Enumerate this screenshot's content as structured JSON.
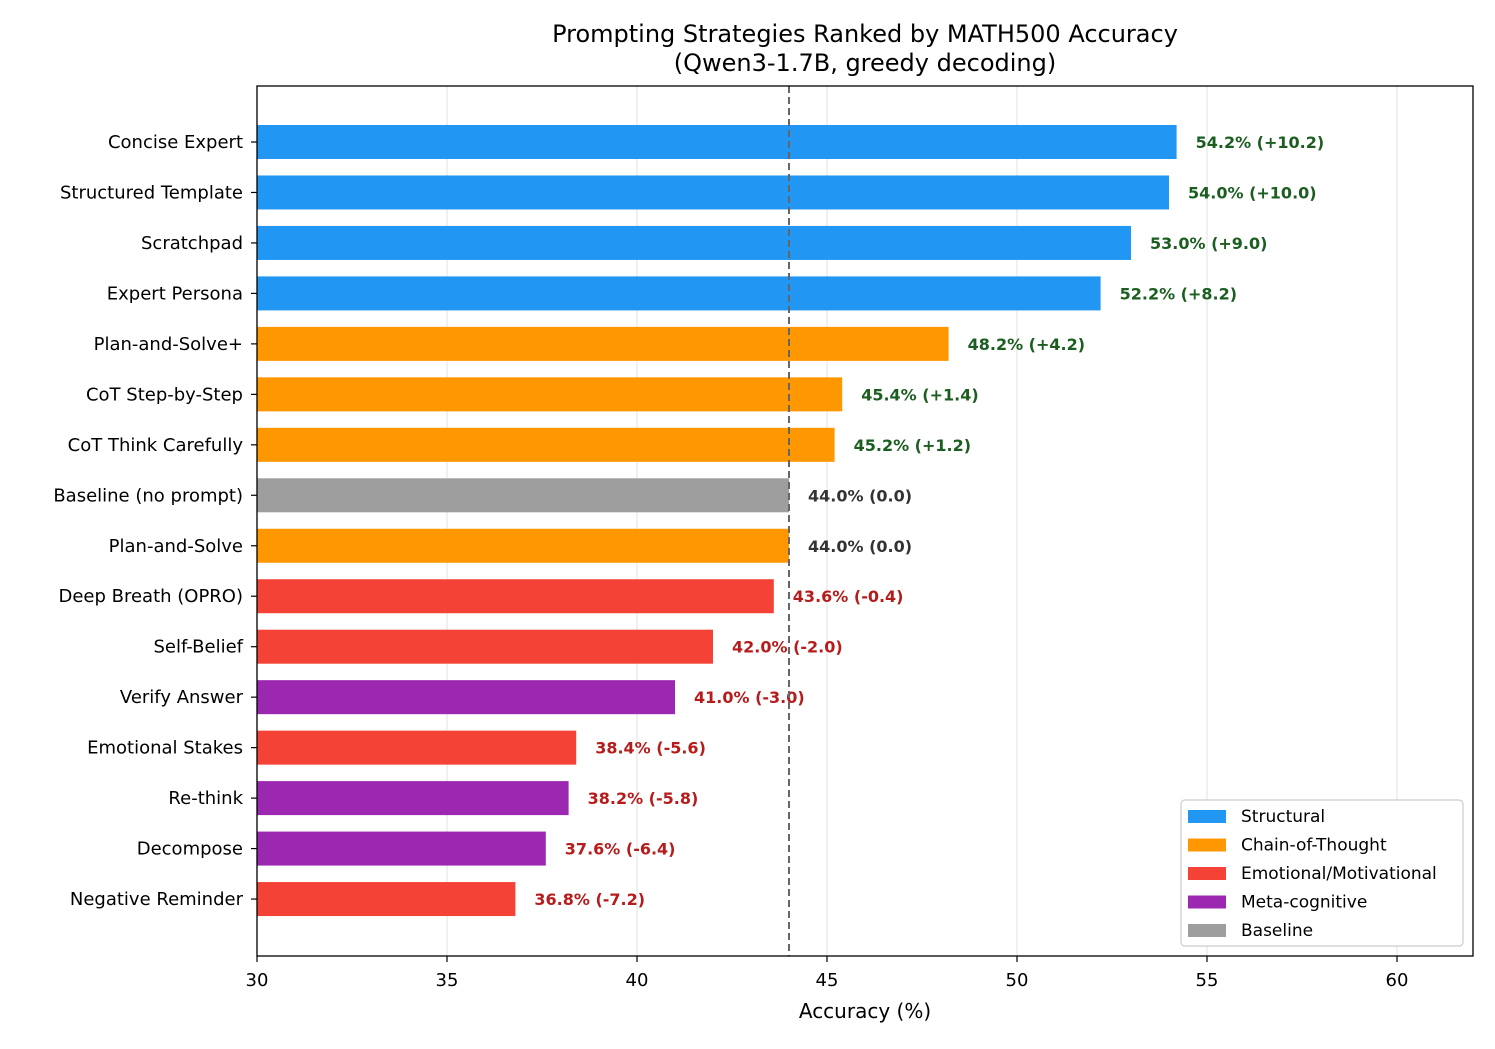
{
  "chart_data": {
    "type": "bar",
    "orientation": "horizontal",
    "title": "Prompting Strategies Ranked by MATH500 Accuracy",
    "subtitle": "(Qwen3-1.7B, greedy decoding)",
    "xlabel": "Accuracy (%)",
    "ylabel": "",
    "xlim": [
      30,
      62
    ],
    "xticks": [
      30,
      35,
      40,
      45,
      50,
      55,
      60
    ],
    "grid": "x",
    "baseline_value": 44.0,
    "baseline_line_style": "dashed",
    "legend_placement": "lower-right",
    "categories_legend": [
      {
        "name": "Structural",
        "color": "#2196F3"
      },
      {
        "name": "Chain-of-Thought",
        "color": "#FF9800"
      },
      {
        "name": "Emotional/Motivational",
        "color": "#F44336"
      },
      {
        "name": "Meta-cognitive",
        "color": "#9C27B0"
      },
      {
        "name": "Baseline",
        "color": "#9E9E9E"
      }
    ],
    "label_colors": {
      "positive": "#1B5E20",
      "neutral": "#333333",
      "negative": "#B71C1C"
    },
    "bars": [
      {
        "label": "Concise Expert",
        "value": 54.2,
        "group": "Structural",
        "annotation": "54.2% (+10.2)"
      },
      {
        "label": "Structured Template",
        "value": 54.0,
        "group": "Structural",
        "annotation": "54.0% (+10.0)"
      },
      {
        "label": "Scratchpad",
        "value": 53.0,
        "group": "Structural",
        "annotation": "53.0% (+9.0)"
      },
      {
        "label": "Expert Persona",
        "value": 52.2,
        "group": "Structural",
        "annotation": "52.2% (+8.2)"
      },
      {
        "label": "Plan-and-Solve+",
        "value": 48.2,
        "group": "Chain-of-Thought",
        "annotation": "48.2% (+4.2)"
      },
      {
        "label": "CoT Step-by-Step",
        "value": 45.4,
        "group": "Chain-of-Thought",
        "annotation": "45.4% (+1.4)"
      },
      {
        "label": "CoT Think Carefully",
        "value": 45.2,
        "group": "Chain-of-Thought",
        "annotation": "45.2% (+1.2)"
      },
      {
        "label": "Baseline (no prompt)",
        "value": 44.0,
        "group": "Baseline",
        "annotation": "44.0% (0.0)"
      },
      {
        "label": "Plan-and-Solve",
        "value": 44.0,
        "group": "Chain-of-Thought",
        "annotation": "44.0% (0.0)"
      },
      {
        "label": "Deep Breath (OPRO)",
        "value": 43.6,
        "group": "Emotional/Motivational",
        "annotation": "43.6% (-0.4)"
      },
      {
        "label": "Self-Belief",
        "value": 42.0,
        "group": "Emotional/Motivational",
        "annotation": "42.0% (-2.0)"
      },
      {
        "label": "Verify Answer",
        "value": 41.0,
        "group": "Meta-cognitive",
        "annotation": "41.0% (-3.0)"
      },
      {
        "label": "Emotional Stakes",
        "value": 38.4,
        "group": "Emotional/Motivational",
        "annotation": "38.4% (-5.6)"
      },
      {
        "label": "Re-think",
        "value": 38.2,
        "group": "Meta-cognitive",
        "annotation": "38.2% (-5.8)"
      },
      {
        "label": "Decompose",
        "value": 37.6,
        "group": "Meta-cognitive",
        "annotation": "37.6% (-6.4)"
      },
      {
        "label": "Negative Reminder",
        "value": 36.8,
        "group": "Emotional/Motivational",
        "annotation": "36.8% (-7.2)"
      }
    ]
  }
}
